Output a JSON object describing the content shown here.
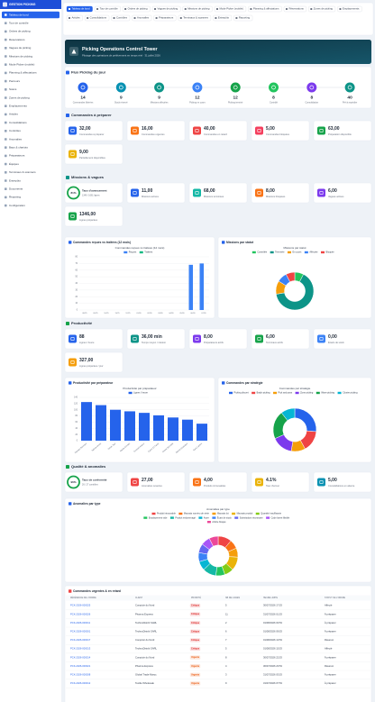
{
  "sidebar": {
    "title": "GESTION PICKING",
    "items": [
      "Tableau de bord",
      "Tour de contrôle",
      "Ordres de picking",
      "Réservations",
      "Vagues de picking",
      "Missions de picking",
      "Mode Picker (mobile)",
      "Planning & affectations",
      "Parcours",
      "Scans",
      "Zones de picking",
      "Emplacements",
      "Articles",
      "Consolidations",
      "Contrôles",
      "Anomalies",
      "Bacs & chariots",
      "Préparateurs",
      "Équipes",
      "Terminaux & scanners",
      "Entrepôts",
      "Documents",
      "Reporting",
      "Configuration"
    ]
  },
  "tabs": [
    "Tableau de bord",
    "Tour de contrôle",
    "Ordres de picking",
    "Vagues de picking",
    "Missions de picking",
    "Mode Picker (mobile)",
    "Planning & affectations",
    "Réservations",
    "Zones de picking",
    "Emplacements",
    "Articles",
    "Consolidations",
    "Contrôles",
    "Anomalies",
    "Préparateurs",
    "Terminaux & scanners",
    "Entrepôts",
    "Reporting"
  ],
  "banner": {
    "title": "Picking Operations Control Tower",
    "subtitle": "Pilotage des opérations de prélèvement en temps réel · 31 juillet 2026"
  },
  "flow": {
    "title": "Flux Picking du jour",
    "steps": [
      {
        "value": "14",
        "label": "Commandes libérées",
        "color": "#2563eb"
      },
      {
        "value": "9",
        "label": "Stock réservé",
        "color": "#0891b2"
      },
      {
        "value": "9",
        "label": "Missions affectées",
        "color": "#0d9488"
      },
      {
        "value": "12",
        "label": "Picking en cours",
        "color": "#3b82f6"
      },
      {
        "value": "12",
        "label": "Picking terminé",
        "color": "#16a34a"
      },
      {
        "value": "8",
        "label": "Contrôlé",
        "color": "#22c55e"
      },
      {
        "value": "8",
        "label": "Consolidation",
        "color": "#7c3aed"
      },
      {
        "value": "40",
        "label": "Prêt à expédier",
        "color": "#0d9488"
      }
    ]
  },
  "sections": [
    {
      "title": "Commandes à préparer",
      "color": "#2563eb",
      "kpis": [
        {
          "value": "32,00",
          "label": "Commandes à préparer",
          "color": "#2563eb"
        },
        {
          "value": "16,00",
          "label": "Commandes urgentes",
          "color": "#f97316"
        },
        {
          "value": "40,00",
          "label": "Commandes en retard",
          "color": "#ef4444"
        },
        {
          "value": "5,00",
          "label": "Commandes bloquées",
          "color": "#f43f5e"
        },
        {
          "value": "63,00",
          "label": "Préparation disponible",
          "color": "#16a34a"
        },
        {
          "value": "9,00",
          "label": "Partiellement disponibles",
          "color": "#eab308"
        }
      ]
    },
    {
      "title": "Missions & vagues",
      "color": "#0d9488",
      "kpis": [
        {
          "value": "81%",
          "label": "Taux d'avancement",
          "sub": "1346 / 1661 lignes",
          "color": "#16a34a",
          "style": "ring"
        },
        {
          "value": "11,00",
          "label": "Missions actives",
          "color": "#2563eb"
        },
        {
          "value": "68,00",
          "label": "Missions terminées",
          "color": "#14b8a6"
        },
        {
          "value": "8,00",
          "label": "Missions bloquées",
          "color": "#f97316"
        },
        {
          "value": "6,00",
          "label": "Vagues actives",
          "color": "#7c3aed"
        },
        {
          "value": "1346,00",
          "label": "Lignes préparées",
          "color": "#16a34a"
        }
      ]
    },
    {
      "title": "Productivité",
      "color": "#16a34a",
      "kpis": [
        {
          "value": "88",
          "label": "Lignes / heure",
          "color": "#2563eb"
        },
        {
          "value": "36,00 min",
          "label": "Temps moyen / mission",
          "color": "#0d9488"
        },
        {
          "value": "8,00",
          "label": "Préparateurs actifs",
          "color": "#7c3aed"
        },
        {
          "value": "6,00",
          "label": "Terminaux actifs",
          "color": "#16a34a"
        },
        {
          "value": "0,00",
          "label": "Écarts de stock",
          "color": "#3b82f6"
        },
        {
          "value": "327,00",
          "label": "Lignes préparées / jour",
          "color": "#f59e0b"
        }
      ]
    },
    {
      "title": "Qualité & anomalies",
      "color": "#16a34a",
      "kpis": [
        {
          "value": "96%",
          "label": "Taux de conformité",
          "sub": "26 / 27 contrôles",
          "color": "#16a34a",
          "style": "ring"
        },
        {
          "value": "27,00",
          "label": "Anomalies ouvertes",
          "color": "#ef4444"
        },
        {
          "value": "4,00",
          "label": "Produits introuvables",
          "color": "#f97316"
        },
        {
          "value": "4.1%",
          "label": "Taux d'erreur",
          "color": "#eab308"
        },
        {
          "value": "5,00",
          "label": "Consolidations en attente",
          "color": "#0891b2"
        }
      ]
    }
  ],
  "charts": [
    {
      "type": "bar",
      "card_title": "Commandes reçues vs traitées (12 mois)",
      "title": "Commandes reçues vs traitées (12 mois)",
      "categories": [
        "08/25",
        "09/25",
        "10/25",
        "11/25",
        "12/25",
        "01/26",
        "02/26",
        "03/26",
        "04/26",
        "05/26",
        "06/26",
        "07/26"
      ],
      "series": [
        {
          "name": "Reçues",
          "color": "#3b82f6",
          "values": [
            0,
            0,
            0,
            0,
            0,
            0,
            0,
            0,
            0,
            0,
            68,
            70
          ]
        },
        {
          "name": "Traitées",
          "color": "#10b981",
          "values": [
            0,
            0,
            0,
            0,
            0,
            0,
            0,
            0,
            0,
            0,
            0,
            0
          ]
        }
      ],
      "ylim": [
        0,
        80
      ],
      "yticks": [
        0,
        10,
        20,
        30,
        40,
        50,
        60,
        70,
        80
      ],
      "grid": true
    },
    {
      "type": "doughnut",
      "card_title": "Missions par statut",
      "title": "Missions par statut",
      "categories": [
        "Contrôlée",
        "Terminée",
        "En cours",
        "Affectée",
        "Bloquée"
      ],
      "values": [
        8,
        68,
        12,
        9,
        8
      ],
      "colors": [
        "#22c55e",
        "#0d9488",
        "#f59e0b",
        "#3b82f6",
        "#ef4444"
      ]
    },
    {
      "type": "bar",
      "card_title": "Productivité par préparateur",
      "title": "Productivité par préparateur",
      "categories": [
        "Hassan Bennani",
        "Salma Idrissi",
        "Omar Tazi",
        "Nadia Chraibi",
        "Youssef Alaoui",
        "Karim El Fassi",
        "Imane Berrada",
        "Mehdi Ouazzani",
        "Sara Lahlou"
      ],
      "series": [
        {
          "name": "Lignes / heure",
          "color": "#2563eb",
          "values": [
            125,
            115,
            100,
            95,
            90,
            82,
            75,
            68,
            55
          ]
        }
      ],
      "ylim": [
        0,
        140
      ],
      "yticks": [
        0,
        20,
        40,
        60,
        80,
        100,
        120,
        140
      ],
      "grid": true,
      "rotate_labels": true
    },
    {
      "type": "doughnut",
      "card_title": "Commandes par stratégie",
      "title": "Commandes par stratégie",
      "categories": [
        "Picking discret",
        "Batch picking",
        "Pick and pass",
        "Zone picking",
        "Wave picking",
        "Cluster picking"
      ],
      "values": [
        5,
        3,
        2,
        3,
        4,
        2
      ],
      "colors": [
        "#2563eb",
        "#ef4444",
        "#f59e0b",
        "#7c3aed",
        "#16a34a",
        "#06b6d4"
      ]
    },
    {
      "type": "doughnut",
      "card_title": "Anomalies par type",
      "title": "Anomalies par type",
      "categories": [
        "Produit introuvable",
        "Mauvais numéro de série",
        "Mauvais lot",
        "Mauvais produit",
        "Quantité insuffisante",
        "Emplacement vide",
        "Produit endommagé",
        "Autre",
        "Écart de stock",
        "Substitution nécessaire",
        "Code barre illisible",
        "Article bloqué"
      ],
      "values": [
        3,
        2,
        2,
        3,
        2,
        2,
        3,
        2,
        2,
        2,
        2,
        2
      ],
      "colors": [
        "#ef4444",
        "#f97316",
        "#f59e0b",
        "#eab308",
        "#84cc16",
        "#22c55e",
        "#14b8a6",
        "#06b6d4",
        "#3b82f6",
        "#6366f1",
        "#a855f7",
        "#ec4899"
      ]
    }
  ],
  "table": {
    "title": "Commandes urgentes & en retard",
    "columns": [
      "RÉFÉRENCE DE L'ORDRE",
      "CLIENT",
      "PRIORITÉ",
      "NB DE LIGNES",
      "HEURE LIMITE",
      "STATUT DE L'ORDRE"
    ],
    "rows": [
      {
        "ref": "PCK-2026-000025",
        "client": "Comptoir du Nord",
        "priority": "Critique",
        "priority_color": "#dc2626",
        "lines": "5",
        "deadline": "30/07/2026 17:53",
        "status": "Affecté"
      },
      {
        "ref": "PCK-2026-000026",
        "client": "Pharma Express",
        "priority": "Critique",
        "priority_color": "#dc2626",
        "lines": "11",
        "deadline": "31/07/2026 01:53",
        "status": "À préparer"
      },
      {
        "ref": "PCK-2026-000011",
        "client": "TechnoDistrib SARL",
        "priority": "Critique",
        "priority_color": "#dc2626",
        "lines": "2",
        "deadline": "01/08/2026 03:53",
        "status": "À préparer"
      },
      {
        "ref": "PCK-2026-000001",
        "client": "TechnoDistrib SARL",
        "priority": "Critique",
        "priority_color": "#dc2626",
        "lines": "6",
        "deadline": "01/08/2026 09:53",
        "status": "À préparer"
      },
      {
        "ref": "PCK-2026-000017",
        "client": "Comptoir du Nord",
        "priority": "Critique",
        "priority_color": "#dc2626",
        "lines": "7",
        "deadline": "01/08/2026 13:53",
        "status": "Réservé"
      },
      {
        "ref": "PCK-2026-000013",
        "client": "TechnoDistrib SARL",
        "priority": "Critique",
        "priority_color": "#dc2626",
        "lines": "5",
        "deadline": "01/08/2026 15:53",
        "status": "Affecté"
      },
      {
        "ref": "PCK-2026-000014",
        "client": "Comptoir du Nord",
        "priority": "Urgente",
        "priority_color": "#ea580c",
        "lines": "8",
        "deadline": "30/07/2026 22:53",
        "status": "À préparer"
      },
      {
        "ref": "PCK-2026-000021",
        "client": "Pharma Express",
        "priority": "Urgente",
        "priority_color": "#ea580c",
        "lines": "4",
        "deadline": "30/07/2026 23:53",
        "status": "Réservé"
      },
      {
        "ref": "PCK-2026-000008",
        "client": "Global Trade Maroc",
        "priority": "Urgente",
        "priority_color": "#ea580c",
        "lines": "3",
        "deadline": "31/07/2026 03:53",
        "status": "À préparer"
      },
      {
        "ref": "PCK-2026-000012",
        "client": "Textile Wholesale",
        "priority": "Urgente",
        "priority_color": "#ea580c",
        "lines": "9",
        "deadline": "31/07/2026 07:53",
        "status": "À préparer"
      }
    ]
  }
}
